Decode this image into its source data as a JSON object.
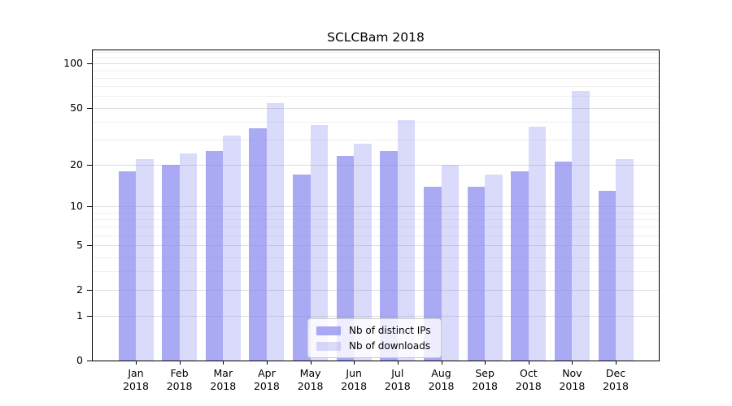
{
  "chart_data": {
    "type": "bar",
    "title": "SCLCBam 2018",
    "categories": [
      "Jan",
      "Feb",
      "Mar",
      "Apr",
      "May",
      "Jun",
      "Jul",
      "Aug",
      "Sep",
      "Oct",
      "Nov",
      "Dec"
    ],
    "x_year_suffix": "2018",
    "series": [
      {
        "name": "Nb of distinct IPs",
        "color": "rgba(134,134,240,0.70)",
        "values": [
          18,
          20,
          25,
          36,
          17,
          23,
          25,
          14,
          14,
          18,
          21,
          13
        ]
      },
      {
        "name": "Nb of downloads",
        "color": "rgba(134,134,240,0.30)",
        "values": [
          22,
          24,
          32,
          54,
          38,
          28,
          41,
          20,
          17,
          37,
          65,
          22
        ]
      }
    ],
    "yscale": "log1p",
    "ylim": [
      0,
      123
    ],
    "y_major_ticks": [
      0,
      1,
      2,
      5,
      10,
      20,
      50,
      100
    ],
    "y_minor_ticks": [
      3,
      4,
      6,
      7,
      8,
      9,
      30,
      40,
      60,
      70,
      80,
      90,
      110,
      120
    ],
    "grid": true,
    "legend_position": "lower center"
  }
}
